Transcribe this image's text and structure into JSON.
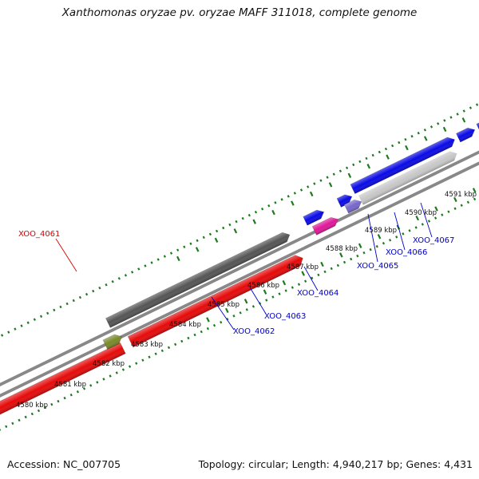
{
  "header": {
    "title": "Xanthomonas oryzae pv. oryzae MAFF 311018, complete genome"
  },
  "footer": {
    "accession": "Accession: NC_007705",
    "summary": "Topology: circular; Length: 4,940,217 bp; Genes: 4,431"
  },
  "chart_data": {
    "type": "diagram",
    "view": "zoomed circular genome map (linear segment)",
    "scale_unit": "kbp",
    "tick_labels": [
      "4580 kbp",
      "4581 kbp",
      "4582 kbp",
      "4583 kbp",
      "4584 kbp",
      "4585 kbp",
      "4586 kbp",
      "4587 kbp",
      "4588 kbp",
      "4589 kbp",
      "4590 kbp",
      "4591 kbp"
    ],
    "gene_labels": [
      {
        "name": "XOO_4061",
        "color": "#dd0000"
      },
      {
        "name": "XOO_4062",
        "color": "#0000cc"
      },
      {
        "name": "XOO_4063",
        "color": "#0000cc"
      },
      {
        "name": "XOO_4064",
        "color": "#0000cc"
      },
      {
        "name": "XOO_4065",
        "color": "#0000cc"
      },
      {
        "name": "XOO_4066",
        "color": "#0000cc"
      },
      {
        "name": "XOO_4067",
        "color": "#0000cc"
      }
    ],
    "colors": {
      "forward_cds": "#0a0ae6",
      "reverse_cds": "#e60a0a",
      "backbone": "#888888",
      "ticks": "#1d7a1d",
      "pseudo_gray": "#c8c8c8",
      "dark_gray": "#555555",
      "purple": "#7766cc",
      "magenta": "#e0189a",
      "olive": "#7a8a2a"
    }
  }
}
